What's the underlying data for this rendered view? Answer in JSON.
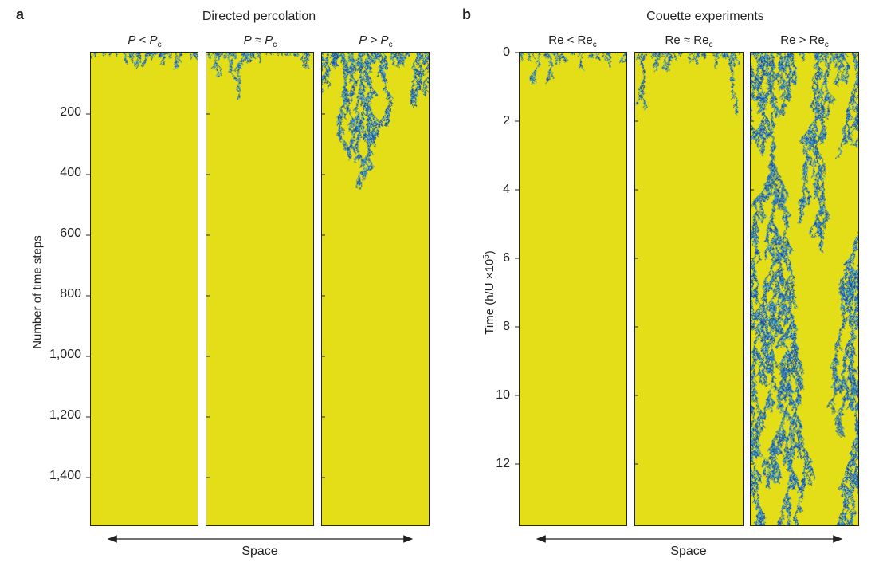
{
  "panel_a": {
    "letter": "a",
    "title": "Directed percolation",
    "columns": [
      {
        "main": "P",
        "rel": " < ",
        "sub": "c",
        "var": "P"
      },
      {
        "main": "P",
        "rel": " ≈ ",
        "sub": "c",
        "var": "P"
      },
      {
        "main": "P",
        "rel": " > ",
        "sub": "c",
        "var": "P"
      }
    ],
    "ylabel": "Number of time steps",
    "yticks": [
      "200",
      "400",
      "600",
      "800",
      "1,000",
      "1,200",
      "1,400"
    ],
    "xlabel": "Space"
  },
  "panel_b": {
    "letter": "b",
    "title": "Couette experiments",
    "columns": [
      {
        "main": "Re",
        "rel": " < ",
        "sub": "c",
        "var": "Re"
      },
      {
        "main": "Re",
        "rel": " ≈ ",
        "sub": "c",
        "var": "Re"
      },
      {
        "main": "Re",
        "rel": " > ",
        "sub": "c",
        "var": "Re"
      }
    ],
    "ylabel": "Time (h/U ×10",
    "ylabel_sup": "5",
    "ylabel_end": ")",
    "yticks": [
      "0",
      "2",
      "4",
      "6",
      "8",
      "10",
      "12"
    ],
    "xlabel": "Space"
  },
  "colors": {
    "laminar": "#e3de17",
    "turbulent_dark": "#1f4f9e",
    "turbulent_light": "#3fa0c8",
    "axis": "#222222"
  }
}
